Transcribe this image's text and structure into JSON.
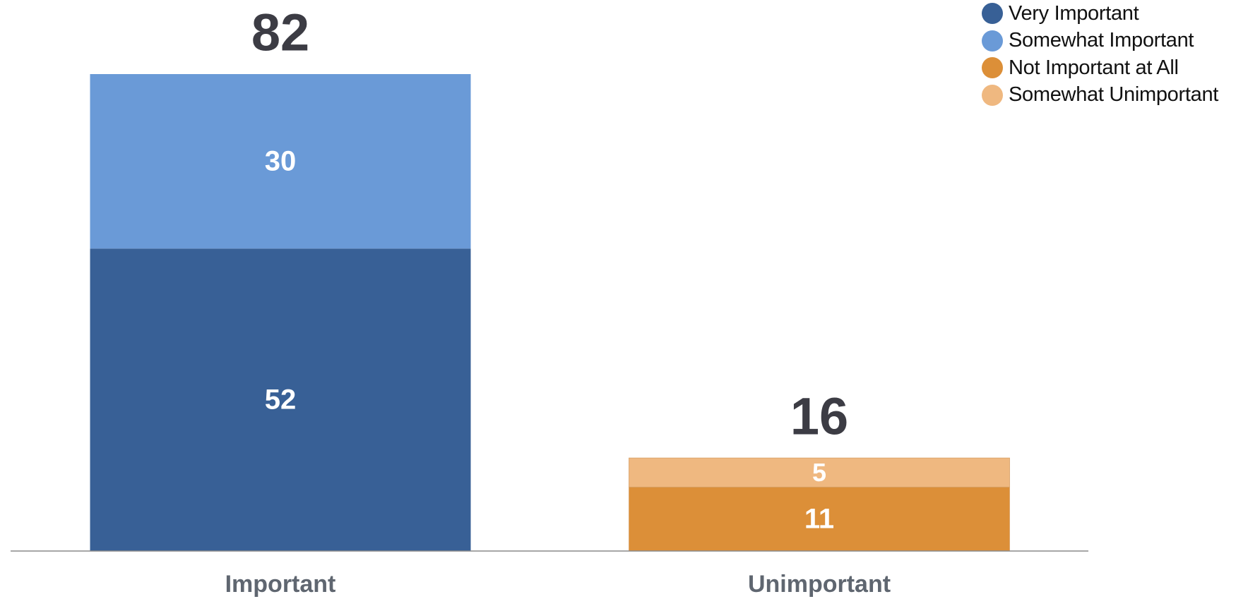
{
  "chart_data": {
    "type": "bar",
    "stacked": true,
    "categories": [
      "Important",
      "Unimportant"
    ],
    "totals": [
      82,
      16
    ],
    "series": [
      {
        "name": "Very Important",
        "color": "#386096",
        "values": [
          52,
          null
        ]
      },
      {
        "name": "Somewhat Important",
        "color": "#6A9AD7",
        "values": [
          30,
          null
        ]
      },
      {
        "name": "Not Important at All",
        "color": "#DC8F38",
        "values": [
          null,
          11
        ]
      },
      {
        "name": "Somewhat Unimportant",
        "color": "#EFB880",
        "values": [
          null,
          5
        ]
      }
    ],
    "title": "",
    "xlabel": "",
    "ylabel": "",
    "ylim": [
      0,
      82
    ],
    "grid": false,
    "legend_position": "top-right"
  }
}
